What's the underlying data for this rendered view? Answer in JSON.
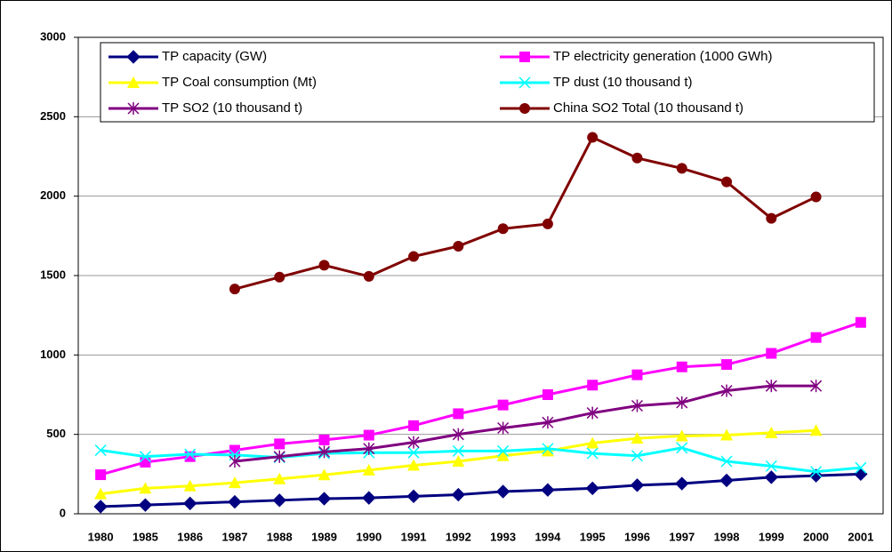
{
  "chart_data": {
    "type": "line",
    "categories": [
      "1980",
      "1985",
      "1986",
      "1987",
      "1988",
      "1989",
      "1990",
      "1991",
      "1992",
      "1993",
      "1994",
      "1995",
      "1996",
      "1997",
      "1998",
      "1999",
      "2000",
      "2001"
    ],
    "series": [
      {
        "name": "TP capacity (GW)",
        "color": "#000080",
        "marker": "diamond",
        "values": [
          45,
          55,
          65,
          75,
          85,
          95,
          100,
          110,
          120,
          140,
          150,
          160,
          180,
          190,
          210,
          230,
          240,
          250
        ]
      },
      {
        "name": "TP electricity generation (1000 GWh)",
        "color": "#ff00ff",
        "marker": "square",
        "values": [
          246,
          325,
          360,
          400,
          440,
          465,
          495,
          555,
          630,
          685,
          750,
          810,
          875,
          925,
          940,
          1010,
          1110,
          1205
        ]
      },
      {
        "name": "TP Coal consumption (Mt)",
        "color": "#ffff00",
        "marker": "triangle",
        "values": [
          125,
          160,
          175,
          195,
          220,
          245,
          275,
          305,
          330,
          365,
          395,
          445,
          475,
          490,
          495,
          510,
          525,
          null
        ]
      },
      {
        "name": "TP dust (10 thousand t)",
        "color": "#00ffff",
        "marker": "x",
        "values": [
          400,
          360,
          375,
          370,
          355,
          380,
          385,
          385,
          395,
          395,
          410,
          380,
          365,
          415,
          330,
          300,
          265,
          290
        ]
      },
      {
        "name": "TP SO2 (10 thousand t)",
        "color": "#800080",
        "marker": "asterisk",
        "values": [
          null,
          null,
          null,
          330,
          360,
          390,
          410,
          450,
          500,
          540,
          575,
          635,
          680,
          700,
          775,
          805,
          805,
          null
        ]
      },
      {
        "name": "China SO2 Total (10 thousand t)",
        "color": "#800000",
        "marker": "circle",
        "values": [
          null,
          null,
          null,
          1415,
          1490,
          1565,
          1495,
          1620,
          1685,
          1795,
          1825,
          2370,
          2240,
          2175,
          2090,
          1860,
          1995,
          null
        ]
      }
    ],
    "ylim": [
      0,
      3000
    ],
    "yticks": [
      0,
      500,
      1000,
      1500,
      2000,
      2500,
      3000
    ],
    "grid": true,
    "legend": "top"
  }
}
